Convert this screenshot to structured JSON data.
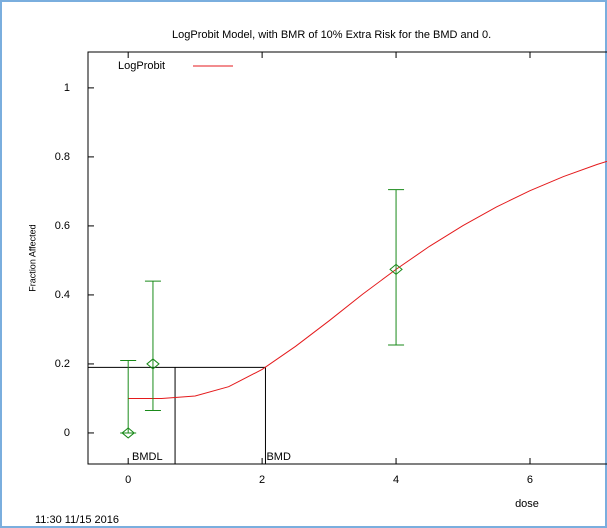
{
  "chart_data": {
    "type": "line",
    "title": "LogProbit Model, with BMR of 10% Extra Risk for the BMD and 0.",
    "x_label": "dose",
    "y_label": "Fraction Affected",
    "timestamp": "11:30 11/15 2016",
    "xlim": [
      -0.6,
      7.15
    ],
    "ylim": [
      -0.09,
      1.104
    ],
    "xticks": [
      0,
      2,
      4,
      6
    ],
    "yticks": [
      0,
      0.2,
      0.4,
      0.6,
      0.8,
      1
    ],
    "legend": "top-left",
    "series": [
      {
        "name": "LogProbit",
        "color": "#e41a1c",
        "x": [
          0,
          0.5,
          1,
          1.5,
          2,
          2.5,
          3,
          3.5,
          4,
          4.5,
          5,
          5.5,
          6,
          6.5,
          7,
          7.15
        ],
        "values": [
          0.1,
          0.1,
          0.107,
          0.134,
          0.184,
          0.251,
          0.325,
          0.402,
          0.474,
          0.541,
          0.601,
          0.655,
          0.702,
          0.743,
          0.778,
          0.787
        ]
      }
    ],
    "points": {
      "color": "#1a8a1a",
      "x": [
        0,
        0.37,
        4
      ],
      "values": [
        0,
        0.2,
        0.474
      ],
      "lower": [
        0,
        0.065,
        0.255
      ],
      "upper": [
        0.21,
        0.44,
        0.705
      ]
    },
    "bmr_level": 0.19,
    "bmdl": {
      "value": 0.7,
      "label": "BMDL"
    },
    "bmd": {
      "value": 2.05,
      "label": "BMD"
    }
  }
}
